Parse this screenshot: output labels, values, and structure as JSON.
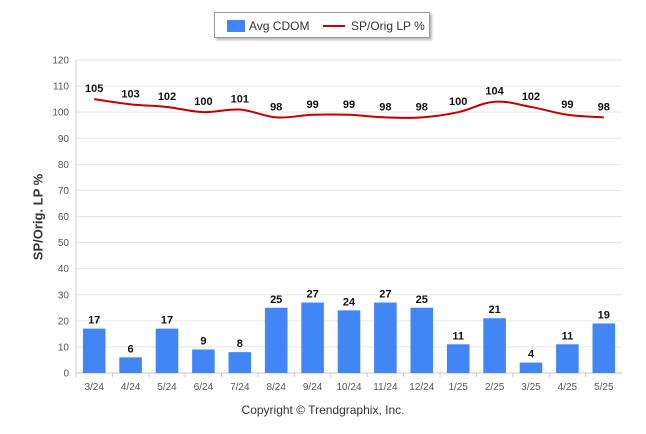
{
  "chart_data": {
    "type": "bar",
    "categories": [
      "3/24",
      "4/24",
      "5/24",
      "6/24",
      "7/24",
      "8/24",
      "9/24",
      "10/24",
      "11/24",
      "12/24",
      "1/25",
      "2/25",
      "3/25",
      "4/25",
      "5/25"
    ],
    "series": [
      {
        "name": "Avg CDOM",
        "type": "bar",
        "color": "#4285f4",
        "values": [
          17,
          6,
          17,
          9,
          8,
          25,
          27,
          24,
          27,
          25,
          11,
          21,
          4,
          11,
          19
        ]
      },
      {
        "name": "SP/Orig LP %",
        "type": "line",
        "color": "#c00000",
        "values": [
          105,
          103,
          102,
          100,
          101,
          98,
          99,
          99,
          98,
          98,
          100,
          104,
          102,
          99,
          98
        ]
      }
    ],
    "ylabel": "SP/Orig. LP %",
    "ylim": [
      0,
      120
    ],
    "yticks": [
      0,
      10,
      20,
      30,
      40,
      50,
      60,
      70,
      80,
      90,
      100,
      110,
      120
    ],
    "grid": true,
    "legend": "top-center"
  },
  "legend": {
    "bar_label": "Avg CDOM",
    "line_label": "SP/Orig LP %"
  },
  "footer": "Copyright © Trendgraphix, Inc."
}
